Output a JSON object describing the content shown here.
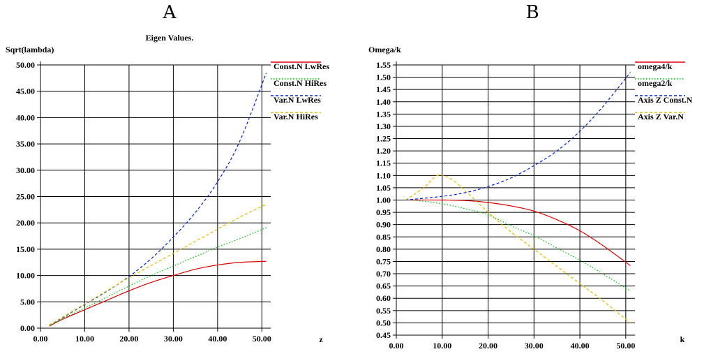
{
  "chart_data": [
    {
      "type": "line",
      "panel": "A",
      "title": "Eigen Values.",
      "ylabel": "Sqrt(lambda)",
      "xlabel": "z",
      "xlim": [
        0,
        52
      ],
      "ylim": [
        0,
        50
      ],
      "x_ticks": [
        "0.00",
        "10.00",
        "20.00",
        "30.00",
        "40.00",
        "50.00"
      ],
      "y_ticks": [
        "0.00",
        "5.00",
        "10.00",
        "15.00",
        "20.00",
        "25.00",
        "30.00",
        "35.00",
        "40.00",
        "45.00",
        "50.00"
      ],
      "grid": true,
      "legend_position": "right",
      "series": [
        {
          "name": "Const.N LwRes",
          "color": "#dd0000",
          "style": "solid",
          "x": [
            2,
            5,
            10,
            15,
            20,
            25,
            30,
            35,
            40,
            45,
            51
          ],
          "y": [
            0.4,
            1.7,
            3.5,
            5.3,
            7.1,
            8.7,
            10.0,
            11.2,
            12.0,
            12.5,
            12.7
          ]
        },
        {
          "name": "Const.N HiRes",
          "color": "#00bb00",
          "style": "dotted",
          "x": [
            2,
            5,
            10,
            15,
            20,
            25,
            30,
            35,
            40,
            45,
            51
          ],
          "y": [
            0.4,
            1.8,
            3.8,
            5.9,
            8.0,
            10.0,
            11.8,
            13.6,
            15.4,
            17.0,
            19.1
          ]
        },
        {
          "name": "Var.N LwRes",
          "color": "#0022dd",
          "style": "dashed",
          "x": [
            2,
            5,
            10,
            15,
            20,
            25,
            30,
            35,
            40,
            45,
            51
          ],
          "y": [
            0.6,
            2.0,
            4.5,
            7.0,
            9.8,
            13.2,
            17.3,
            22.0,
            27.8,
            35.5,
            48.5
          ]
        },
        {
          "name": "Var.N HiRes",
          "color": "#ddbb00",
          "style": "dashed",
          "x": [
            2,
            5,
            10,
            15,
            20,
            25,
            30,
            35,
            40,
            45,
            51
          ],
          "y": [
            0.6,
            2.1,
            4.6,
            7.1,
            9.6,
            11.9,
            14.2,
            16.5,
            18.8,
            21.1,
            23.5
          ]
        }
      ]
    },
    {
      "type": "line",
      "panel": "B",
      "title": "",
      "ylabel": "Omega/k",
      "xlabel": "k",
      "xlim": [
        0,
        52
      ],
      "ylim": [
        0.45,
        1.55
      ],
      "x_ticks": [
        "0.00",
        "10.00",
        "20.00",
        "30.00",
        "40.00",
        "50.00"
      ],
      "y_ticks": [
        "0.45",
        "0.50",
        "0.55",
        "0.60",
        "0.65",
        "0.70",
        "0.75",
        "0.80",
        "0.85",
        "0.90",
        "0.95",
        "1.00",
        "1.05",
        "1.10",
        "1.15",
        "1.20",
        "1.25",
        "1.30",
        "1.35",
        "1.40",
        "1.45",
        "1.50",
        "1.55"
      ],
      "grid": true,
      "legend_position": "right",
      "series": [
        {
          "name": "omega4/k",
          "color": "#dd0000",
          "style": "solid",
          "x": [
            2,
            10,
            15,
            20,
            25,
            30,
            35,
            40,
            45,
            51
          ],
          "y": [
            1.0,
            1.0,
            0.998,
            0.99,
            0.976,
            0.955,
            0.92,
            0.875,
            0.815,
            0.733
          ]
        },
        {
          "name": "omega2/k",
          "color": "#00bb00",
          "style": "dotted",
          "x": [
            2,
            5,
            10,
            15,
            20,
            25,
            30,
            35,
            40,
            45,
            51
          ],
          "y": [
            1.0,
            0.997,
            0.985,
            0.965,
            0.94,
            0.895,
            0.855,
            0.805,
            0.755,
            0.7,
            0.63
          ]
        },
        {
          "name": "Axis Z Const.N",
          "color": "#0022dd",
          "style": "dashed",
          "x": [
            2,
            10,
            15,
            20,
            25,
            30,
            35,
            40,
            45,
            51
          ],
          "y": [
            1.0,
            1.015,
            1.03,
            1.055,
            1.09,
            1.14,
            1.2,
            1.28,
            1.38,
            1.52
          ]
        },
        {
          "name": "Axis Z Var.N",
          "color": "#ddbb00",
          "style": "dashed",
          "x": [
            2,
            6,
            9,
            12,
            16,
            20,
            25,
            30,
            35,
            40,
            45,
            51
          ],
          "y": [
            1.0,
            1.05,
            1.1,
            1.085,
            1.02,
            0.95,
            0.87,
            0.8,
            0.73,
            0.66,
            0.59,
            0.5
          ]
        }
      ]
    }
  ],
  "panels": [
    {
      "label": "A"
    },
    {
      "label": "B"
    }
  ]
}
